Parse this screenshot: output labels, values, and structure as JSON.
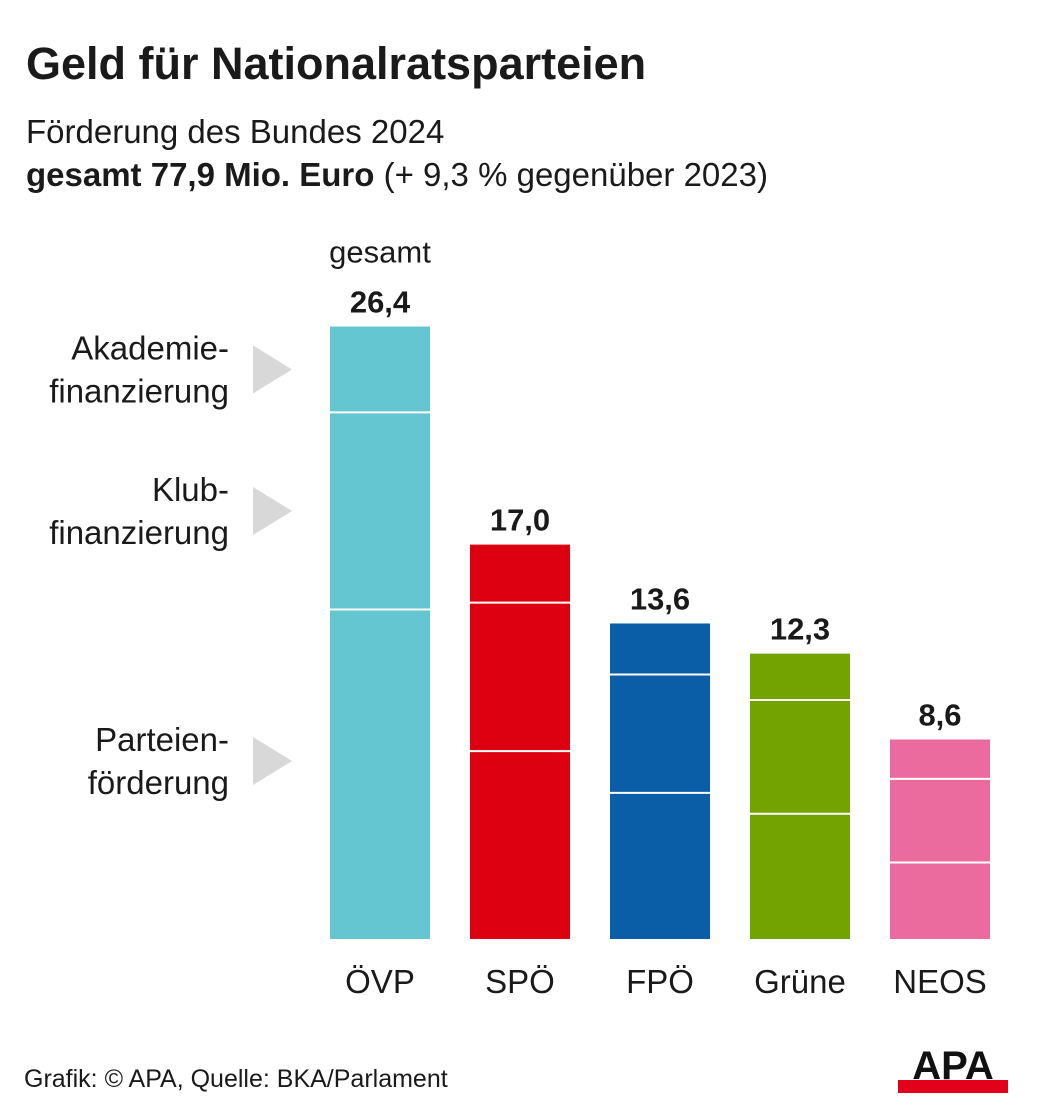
{
  "title": "Geld für Nationalratsparteien",
  "subtitle": "Förderung des Bundes 2024",
  "total": {
    "label_bold": "gesamt 77,9 Mio. Euro",
    "label_rest": " (+ 9,3 % gegenüber 2023)"
  },
  "footer": "Grafik: © APA, Quelle: BKA/Parlament",
  "logo_text": "APA",
  "chart_data": {
    "type": "bar",
    "stacked": true,
    "categories": [
      "ÖVP",
      "SPÖ",
      "FPÖ",
      "Grüne",
      "NEOS"
    ],
    "totals": [
      26.4,
      17.0,
      13.6,
      12.3,
      8.6
    ],
    "total_labels": [
      "26,4",
      "17,0",
      "13,6",
      "12,3",
      "8,6"
    ],
    "total_header": "gesamt",
    "colors": [
      "#63c6d0",
      "#dc0011",
      "#0a5ea8",
      "#72a300",
      "#ec6b9e"
    ],
    "series": [
      {
        "name": "Parteienförderung",
        "label_lines": [
          "Parteien-",
          "förderung"
        ],
        "values": [
          14.2,
          8.1,
          6.3,
          5.4,
          3.3
        ]
      },
      {
        "name": "Klubfinanzierung",
        "label_lines": [
          "Klub-",
          "finanzierung"
        ],
        "values": [
          8.5,
          6.4,
          5.1,
          4.9,
          3.6
        ]
      },
      {
        "name": "Akademiefinanzierung",
        "label_lines": [
          "Akademie-",
          "finanzierung"
        ],
        "values": [
          3.7,
          2.5,
          2.2,
          2.0,
          1.7
        ]
      }
    ]
  }
}
